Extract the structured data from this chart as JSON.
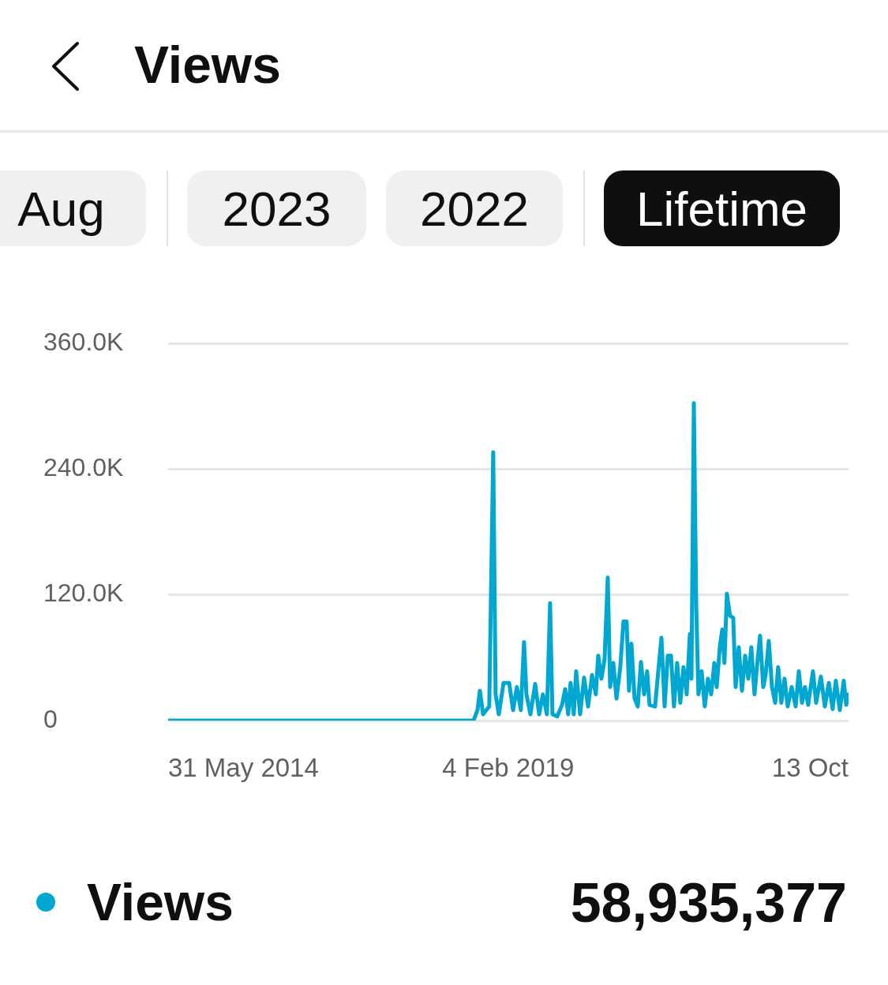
{
  "chart_data": {
    "type": "line",
    "title": "Views",
    "annotations": [
      "Aug",
      "2023",
      "2022",
      "Lifetime",
      "58,935,377"
    ],
    "x": [
      "2014-05-31",
      "2018-08-14",
      "2018-09-03",
      "2018-09-15",
      "2018-10-01",
      "2018-11-01",
      "2018-11-21",
      "2018-12-03",
      "2018-12-19",
      "2019-01-12",
      "2019-02-09",
      "2019-03-01",
      "2019-03-20",
      "2019-04-09",
      "2019-04-25",
      "2019-05-07",
      "2019-05-27",
      "2019-06-20",
      "2019-07-10",
      "2019-07-29",
      "2019-08-18",
      "2019-09-03",
      "2019-09-15",
      "2019-10-09",
      "2019-11-02",
      "2019-11-18",
      "2019-12-03",
      "2019-12-15",
      "2019-12-31",
      "2020-01-12",
      "2020-02-01",
      "2020-02-21",
      "2020-03-12",
      "2020-04-01",
      "2020-04-20",
      "2020-05-02",
      "2020-05-18",
      "2020-06-03",
      "2020-06-19",
      "2020-07-01",
      "2020-07-17",
      "2020-08-02",
      "2020-08-21",
      "2020-09-06",
      "2020-09-22",
      "2020-10-04",
      "2020-10-16",
      "2020-11-01",
      "2020-11-17",
      "2020-12-03",
      "2020-12-19",
      "2021-01-03",
      "2021-01-15",
      "2021-02-12",
      "2021-02-28",
      "2021-03-16",
      "2021-04-01",
      "2021-04-17",
      "2021-05-03",
      "2021-05-18",
      "2021-06-03",
      "2021-06-19",
      "2021-07-05",
      "2021-07-21",
      "2021-08-06",
      "2021-08-14",
      "2021-08-26",
      "2021-09-07",
      "2021-09-18",
      "2021-10-04",
      "2021-10-20",
      "2021-11-05",
      "2021-11-21",
      "2021-12-07",
      "2021-12-19",
      "2022-01-04",
      "2022-01-16",
      "2022-01-27",
      "2022-02-08",
      "2022-02-24",
      "2022-03-12",
      "2022-03-24",
      "2022-04-09",
      "2022-04-25",
      "2022-05-11",
      "2022-05-27",
      "2022-06-11",
      "2022-06-27",
      "2022-07-13",
      "2022-07-25",
      "2022-08-10",
      "2022-08-22",
      "2022-09-07",
      "2022-09-23",
      "2022-10-09",
      "2022-10-24",
      "2022-11-09",
      "2022-11-25",
      "2022-12-11",
      "2022-12-31",
      "2023-01-20",
      "2023-02-05",
      "2023-02-21",
      "2023-03-08",
      "2023-03-24",
      "2023-04-17",
      "2023-05-03",
      "2023-05-27",
      "2023-06-16",
      "2023-07-06",
      "2023-07-25",
      "2023-08-10",
      "2023-08-30",
      "2023-09-19",
      "2023-10-01",
      "2023-10-13"
    ],
    "series": [
      {
        "name": "Views",
        "color": "#00a7d0",
        "values": [
          0,
          0,
          10000,
          28500,
          6000,
          13500,
          256000,
          25000,
          6000,
          36000,
          36000,
          10000,
          32000,
          10000,
          75000,
          25000,
          6000,
          35000,
          6000,
          25000,
          6000,
          112000,
          6000,
          4000,
          15000,
          30000,
          6000,
          36000,
          6000,
          47000,
          6000,
          41000,
          13500,
          43500,
          25000,
          62000,
          40000,
          58500,
          136500,
          32000,
          55000,
          21000,
          51000,
          94500,
          94500,
          28500,
          73500,
          21000,
          13500,
          56000,
          25000,
          47000,
          15000,
          13500,
          47000,
          79000,
          13500,
          62000,
          62000,
          13500,
          55000,
          17000,
          51000,
          25000,
          82500,
          40000,
          303000,
          109500,
          25000,
          47000,
          13500,
          40000,
          25000,
          55000,
          32000,
          71000,
          87000,
          55000,
          121000,
          100000,
          98000,
          32000,
          70000,
          28500,
          62000,
          40000,
          70000,
          25000,
          58500,
          81000,
          32000,
          43500,
          76000,
          32000,
          17000,
          51000,
          17000,
          40000,
          13500,
          32000,
          13500,
          47000,
          17000,
          32000,
          15000,
          47000,
          17000,
          42000,
          13500,
          36000,
          11000,
          38000,
          10000,
          38000,
          15000,
          25000
        ]
      }
    ],
    "xlim": [
      "2014-05-31",
      "2023-10-13"
    ],
    "xticks": [
      {
        "value": "2014-05-31",
        "label": "31 May 2014"
      },
      {
        "value": "2019-02-04",
        "label": "4 Feb 2019"
      },
      {
        "value": "2023-10-13",
        "label": "13 Oct"
      }
    ],
    "ylim": [
      0,
      360000
    ],
    "yticks": [
      {
        "value": 0,
        "label": "0"
      },
      {
        "value": 120000,
        "label": "120.0K"
      },
      {
        "value": 240000,
        "label": "240.0K"
      },
      {
        "value": 360000,
        "label": "360.0K"
      }
    ],
    "grid": "y",
    "legend": "bottom",
    "marker": "none",
    "line_style": "solid"
  }
}
